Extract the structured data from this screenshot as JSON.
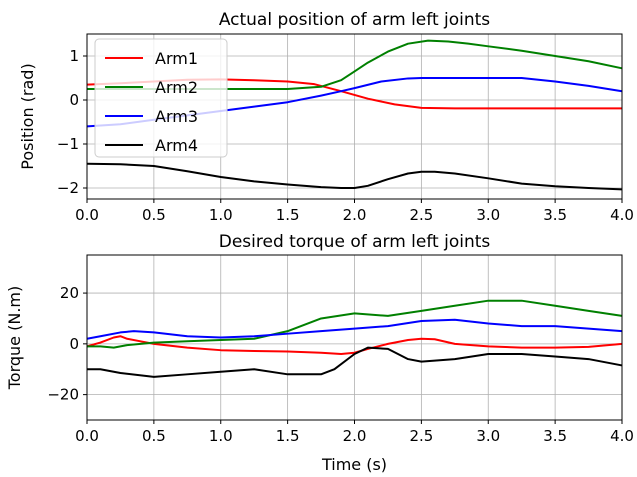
{
  "chart_data": [
    {
      "type": "line",
      "title": "Actual position of arm left joints",
      "xlabel": "",
      "ylabel": "Position (rad)",
      "xlim": [
        0.0,
        4.0
      ],
      "ylim": [
        -2.25,
        1.5
      ],
      "xticks": [
        0.0,
        0.5,
        1.0,
        1.5,
        2.0,
        2.5,
        3.0,
        3.5,
        4.0
      ],
      "xtick_labels": [
        "0.0",
        "0.5",
        "1.0",
        "1.5",
        "2.0",
        "2.5",
        "3.0",
        "3.5",
        "4.0"
      ],
      "yticks": [
        1,
        0,
        -1,
        -2
      ],
      "ytick_labels": [
        "1",
        "0",
        "−1",
        "−2"
      ],
      "grid": true,
      "legend": {
        "placement": "upper-left",
        "entries": [
          "Arm1",
          "Arm2",
          "Arm3",
          "Arm4"
        ]
      },
      "series": [
        {
          "name": "Arm1",
          "color": "#ff0000",
          "x": [
            0.0,
            0.25,
            0.5,
            0.75,
            1.0,
            1.25,
            1.5,
            1.7,
            1.9,
            2.1,
            2.3,
            2.5,
            2.75,
            3.0,
            3.5,
            4.0
          ],
          "y": [
            0.35,
            0.38,
            0.42,
            0.46,
            0.47,
            0.45,
            0.42,
            0.36,
            0.2,
            0.03,
            -0.1,
            -0.18,
            -0.19,
            -0.19,
            -0.19,
            -0.19
          ]
        },
        {
          "name": "Arm2",
          "color": "#008000",
          "x": [
            0.0,
            0.5,
            1.0,
            1.5,
            1.75,
            1.9,
            2.0,
            2.1,
            2.25,
            2.4,
            2.55,
            2.7,
            2.85,
            3.0,
            3.25,
            3.5,
            3.75,
            4.0
          ],
          "y": [
            0.25,
            0.25,
            0.25,
            0.25,
            0.3,
            0.45,
            0.65,
            0.85,
            1.1,
            1.28,
            1.35,
            1.33,
            1.28,
            1.22,
            1.12,
            1.0,
            0.88,
            0.72
          ]
        },
        {
          "name": "Arm3",
          "color": "#0000ff",
          "x": [
            0.0,
            0.25,
            0.5,
            0.75,
            1.0,
            1.25,
            1.5,
            1.75,
            1.9,
            2.0,
            2.2,
            2.4,
            2.5,
            2.75,
            3.0,
            3.25,
            3.5,
            3.75,
            4.0
          ],
          "y": [
            -0.6,
            -0.55,
            -0.45,
            -0.35,
            -0.25,
            -0.15,
            -0.05,
            0.1,
            0.2,
            0.27,
            0.42,
            0.49,
            0.5,
            0.5,
            0.5,
            0.5,
            0.42,
            0.32,
            0.2
          ]
        },
        {
          "name": "Arm4",
          "color": "#000000",
          "x": [
            0.0,
            0.25,
            0.5,
            0.75,
            1.0,
            1.25,
            1.5,
            1.75,
            1.9,
            2.0,
            2.1,
            2.25,
            2.4,
            2.5,
            2.6,
            2.75,
            3.0,
            3.25,
            3.5,
            3.75,
            4.0
          ],
          "y": [
            -1.45,
            -1.46,
            -1.5,
            -1.62,
            -1.75,
            -1.85,
            -1.92,
            -1.98,
            -2.0,
            -2.0,
            -1.95,
            -1.8,
            -1.67,
            -1.63,
            -1.63,
            -1.67,
            -1.78,
            -1.9,
            -1.96,
            -2.0,
            -2.03
          ]
        }
      ]
    },
    {
      "type": "line",
      "title": "Desired torque of arm left joints",
      "xlabel": "Time (s)",
      "ylabel": "Torque (N.m)",
      "xlim": [
        0.0,
        4.0
      ],
      "ylim": [
        -30,
        35
      ],
      "xticks": [
        0.0,
        0.5,
        1.0,
        1.5,
        2.0,
        2.5,
        3.0,
        3.5,
        4.0
      ],
      "xtick_labels": [
        "0.0",
        "0.5",
        "1.0",
        "1.5",
        "2.0",
        "2.5",
        "3.0",
        "3.5",
        "4.0"
      ],
      "yticks": [
        20,
        0,
        -20
      ],
      "ytick_labels": [
        "20",
        "0",
        "−20"
      ],
      "grid": true,
      "series": [
        {
          "name": "Arm1",
          "color": "#ff0000",
          "x": [
            0.0,
            0.1,
            0.2,
            0.25,
            0.3,
            0.4,
            0.5,
            0.75,
            1.0,
            1.25,
            1.5,
            1.75,
            1.9,
            2.0,
            2.1,
            2.25,
            2.4,
            2.5,
            2.6,
            2.75,
            3.0,
            3.25,
            3.5,
            3.75,
            4.0
          ],
          "y": [
            -1,
            0.5,
            2.5,
            3,
            2,
            1,
            0,
            -1.5,
            -2.5,
            -2.8,
            -3,
            -3.5,
            -4,
            -3.5,
            -2,
            0,
            1.5,
            2,
            1.8,
            0,
            -1,
            -1.5,
            -1.5,
            -1.2,
            0
          ]
        },
        {
          "name": "Arm2",
          "color": "#008000",
          "x": [
            0.0,
            0.1,
            0.2,
            0.3,
            0.5,
            0.75,
            1.0,
            1.25,
            1.5,
            1.75,
            2.0,
            2.25,
            2.5,
            2.75,
            3.0,
            3.25,
            3.5,
            3.75,
            4.0
          ],
          "y": [
            -1,
            -1,
            -1.5,
            -0.5,
            0.5,
            1,
            1.5,
            2,
            5,
            10,
            12,
            11,
            13,
            15,
            17,
            17,
            15,
            13,
            11
          ]
        },
        {
          "name": "Arm3",
          "color": "#0000ff",
          "x": [
            0.0,
            0.1,
            0.25,
            0.35,
            0.5,
            0.75,
            1.0,
            1.25,
            1.5,
            1.75,
            2.0,
            2.25,
            2.5,
            2.75,
            3.0,
            3.25,
            3.5,
            3.75,
            4.0
          ],
          "y": [
            2,
            3,
            4.5,
            5,
            4.5,
            3,
            2.5,
            3,
            4,
            5,
            6,
            7,
            9,
            9.5,
            8,
            7,
            7,
            6,
            5
          ]
        },
        {
          "name": "Arm4",
          "color": "#000000",
          "x": [
            0.0,
            0.1,
            0.25,
            0.5,
            0.75,
            1.0,
            1.25,
            1.5,
            1.75,
            1.85,
            2.0,
            2.1,
            2.25,
            2.4,
            2.5,
            2.75,
            3.0,
            3.25,
            3.5,
            3.75,
            4.0
          ],
          "y": [
            -10,
            -10,
            -11.5,
            -13,
            -12,
            -11,
            -10,
            -12,
            -12,
            -10,
            -4,
            -1.5,
            -2,
            -6,
            -7,
            -6,
            -4,
            -4,
            -5,
            -6,
            -8.5
          ]
        }
      ]
    }
  ]
}
